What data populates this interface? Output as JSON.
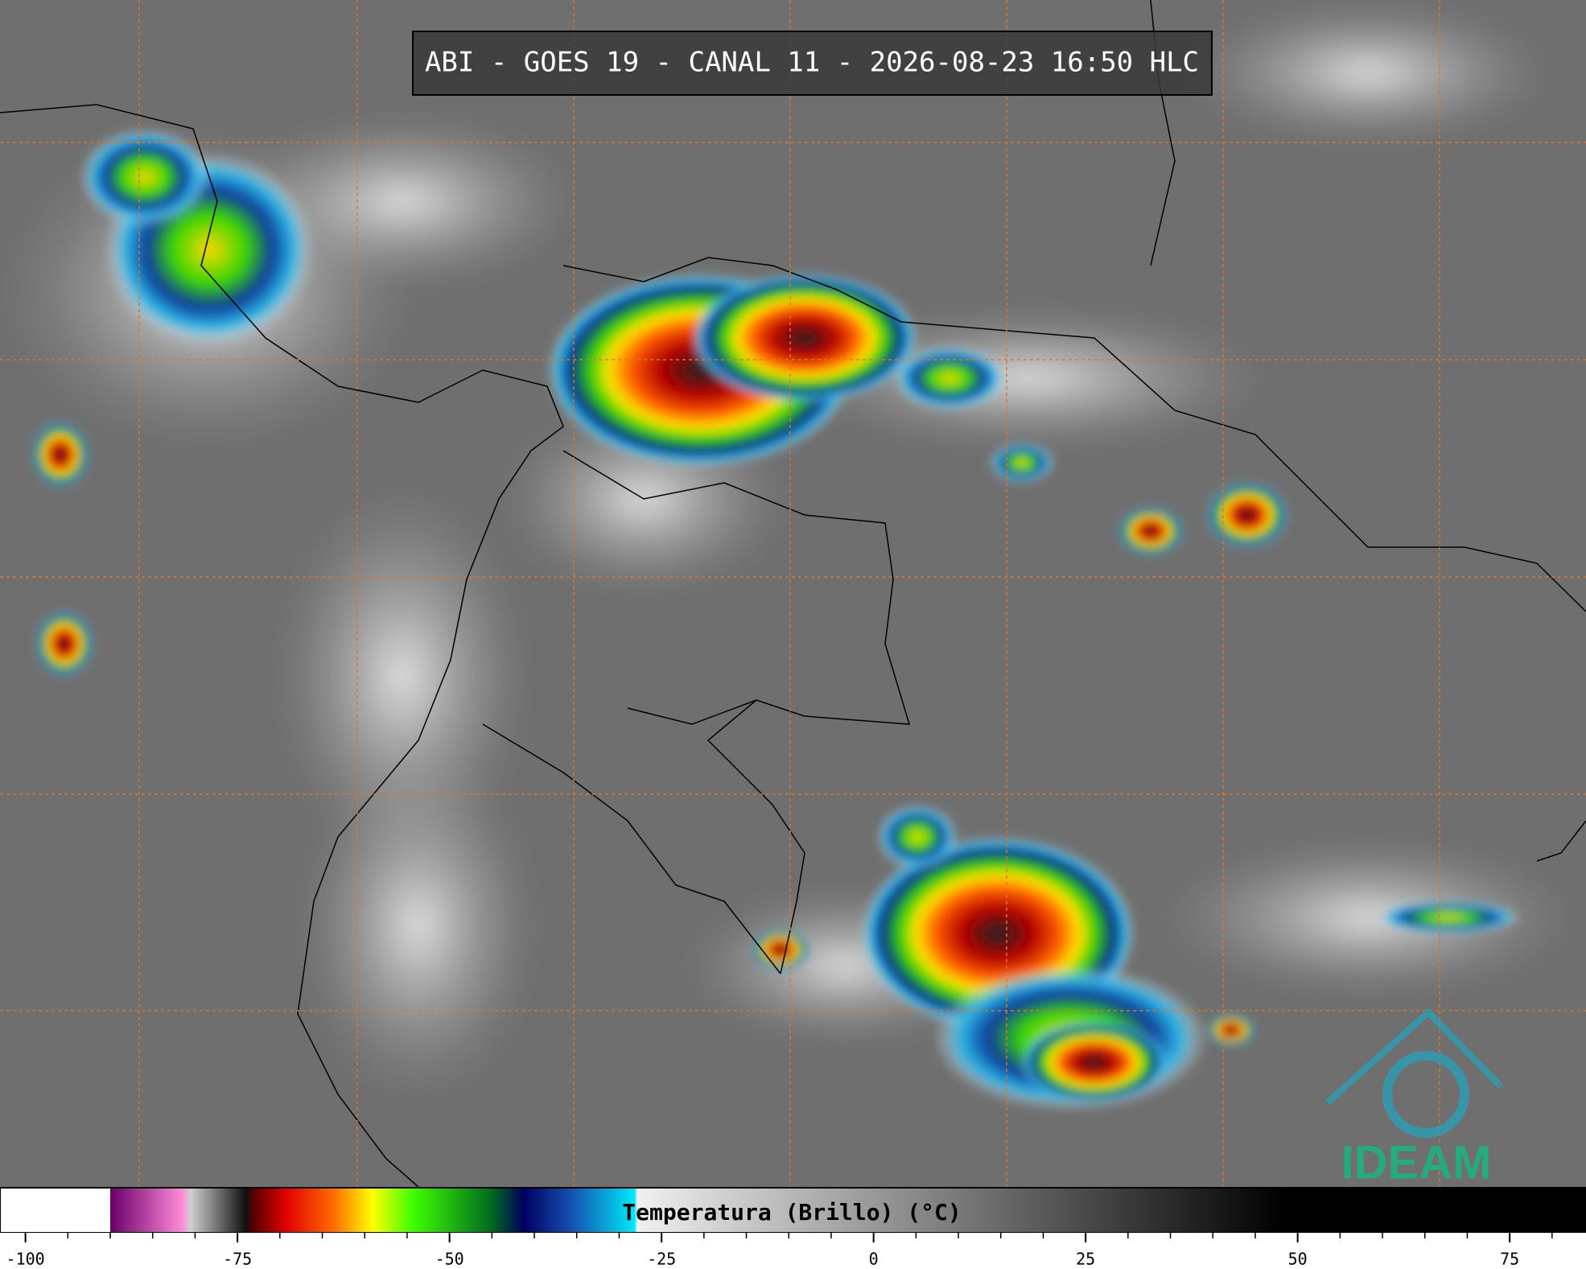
{
  "title": "ABI - GOES 19 - CANAL 11 - 2026-08-23 16:50 HLC",
  "colorbar": {
    "label": "Temperatura (Brillo) (°C)",
    "lim": [
      -103,
      84
    ],
    "ticks": [
      -100,
      -75,
      -50,
      -25,
      0,
      25,
      50,
      75
    ],
    "minor_ticks": [
      -95,
      -90,
      -85,
      -80,
      -70,
      -65,
      -60,
      -55,
      -45,
      -40,
      -35,
      -30,
      -20,
      -15,
      -10,
      -5,
      5,
      10,
      15,
      20,
      30,
      35,
      40,
      45,
      55,
      60,
      65,
      70,
      80
    ]
  },
  "logo": {
    "text": "IDEAM"
  }
}
